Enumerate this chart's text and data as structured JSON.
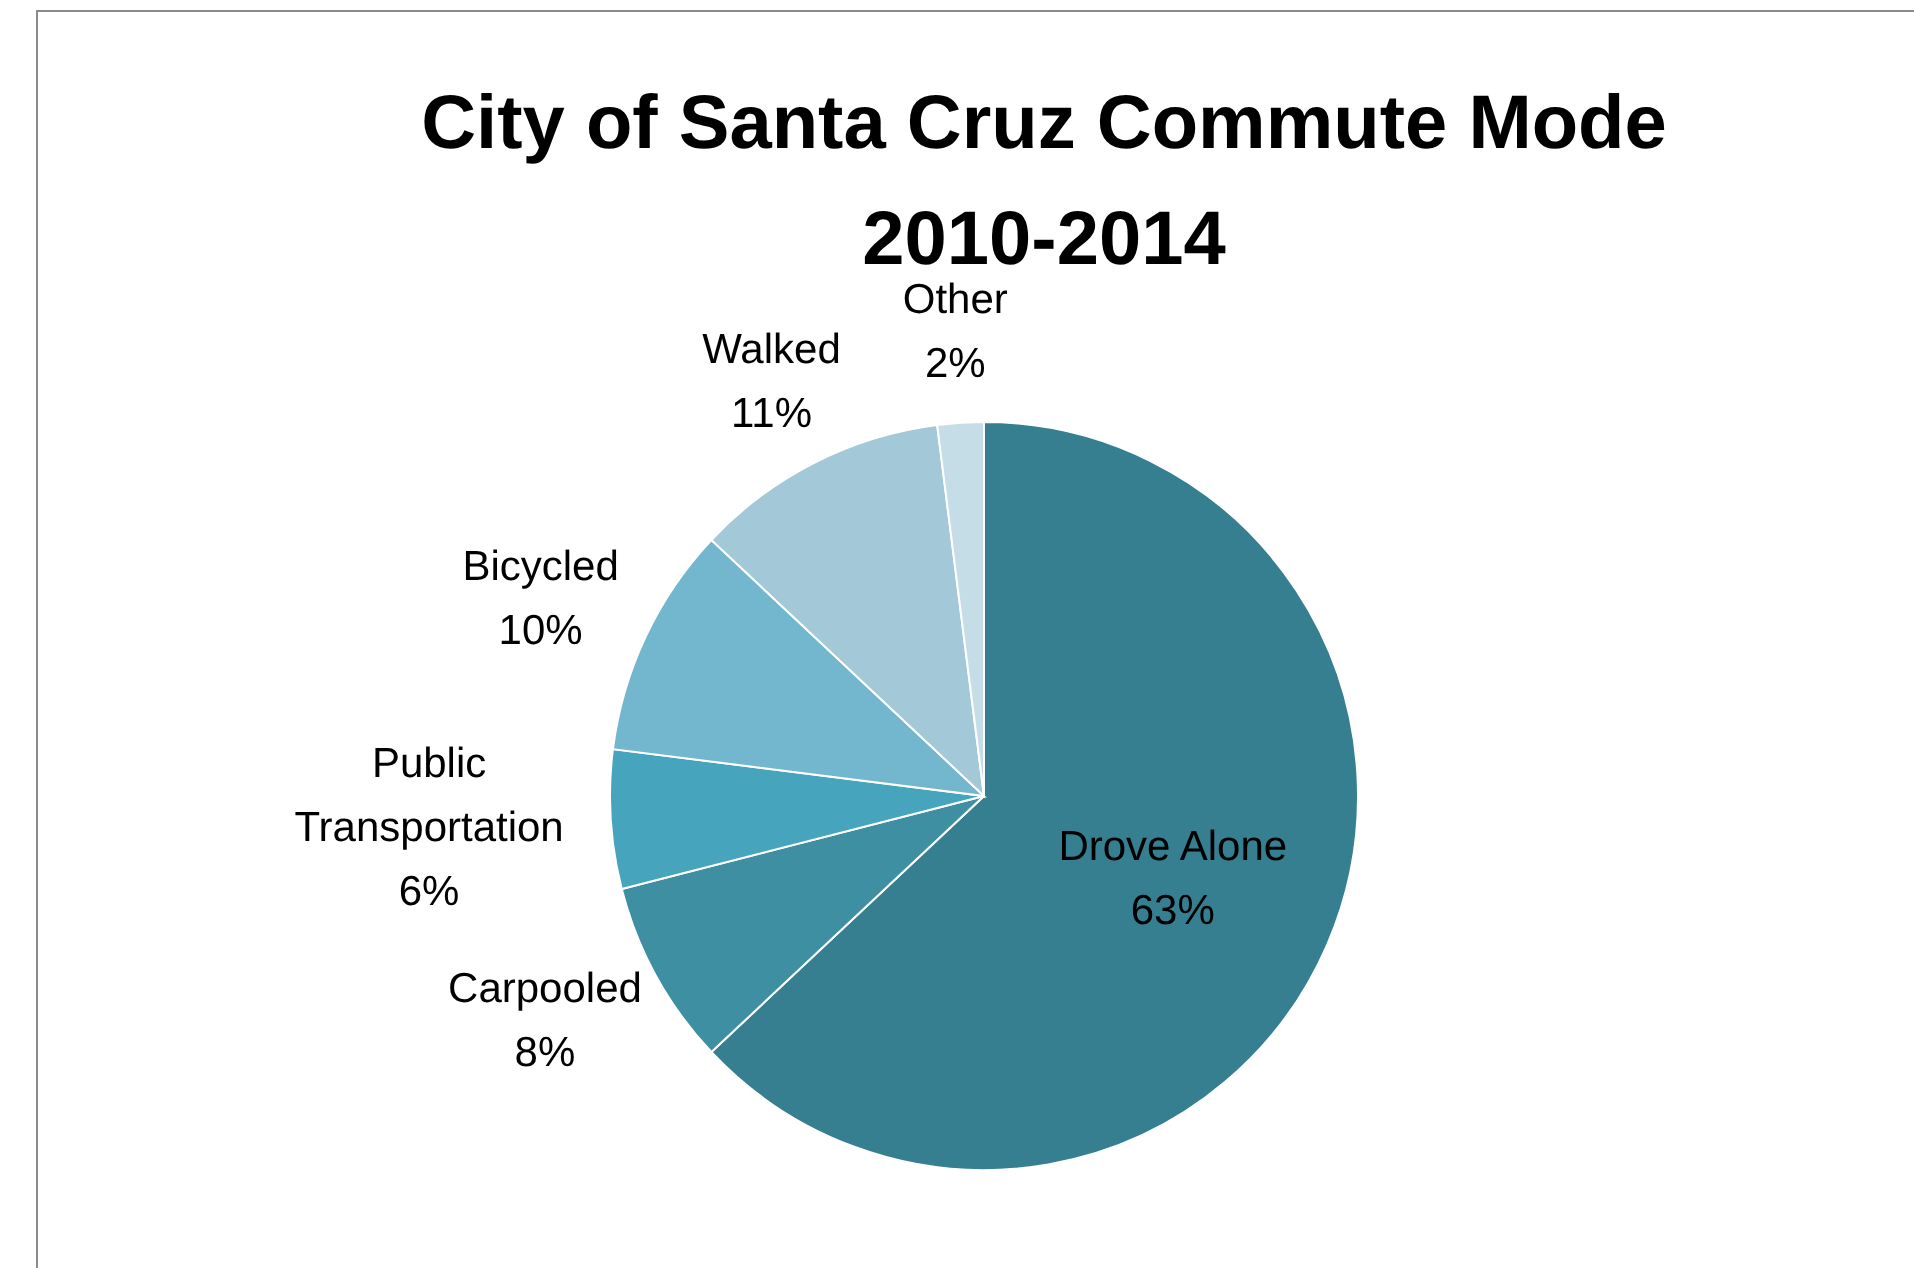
{
  "chart_data": {
    "type": "pie",
    "title": "City of Santa Cruz Commute Mode 2010-2014",
    "categories": [
      "Drove Alone",
      "Carpooled",
      "Public Transportation",
      "Bicycled",
      "Walked",
      "Other"
    ],
    "values": [
      63,
      8,
      6,
      10,
      11,
      2
    ],
    "colors": [
      "#367f91",
      "#3f8fa3",
      "#46a5bd",
      "#72b7ce",
      "#a3c9d9",
      "#c5dde6"
    ],
    "value_labels": [
      "63%",
      "8%",
      "6%",
      "10%",
      "11%",
      "2%"
    ],
    "legend": false
  }
}
